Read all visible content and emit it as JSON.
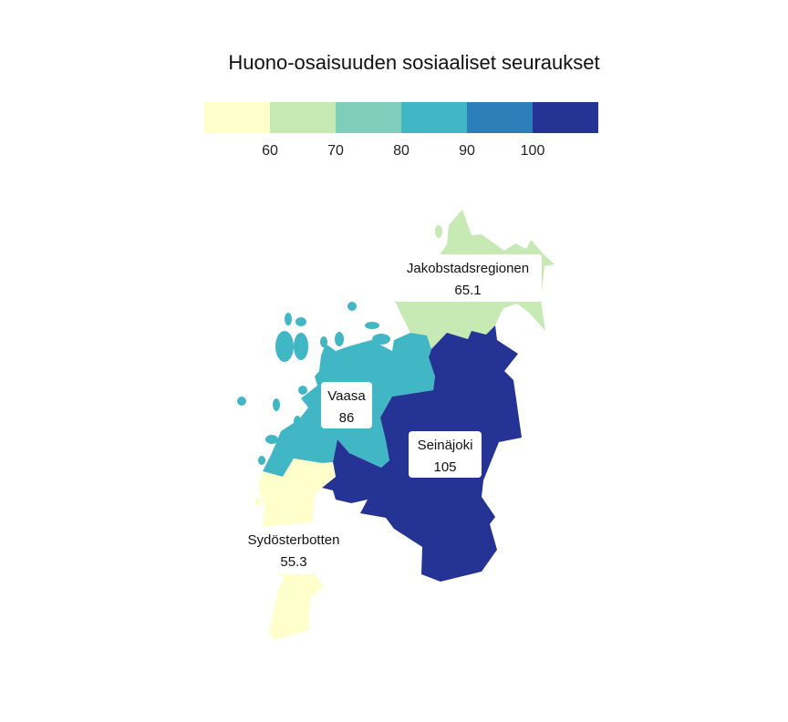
{
  "title": "Huono-osaisuuden sosiaaliset seuraukset",
  "legend": {
    "breaks": [
      "60",
      "70",
      "80",
      "90",
      "100"
    ],
    "colors": [
      "#ffffcc",
      "#c7e9b4",
      "#7fcdbb",
      "#41b6c4",
      "#2c7fb8",
      "#253494"
    ]
  },
  "regions": [
    {
      "name": "Jakobstadsregionen",
      "value": "65.1",
      "color": "#c7e9b4"
    },
    {
      "name": "Vaasa",
      "value": "86",
      "color": "#41b6c4"
    },
    {
      "name": "Seinäjoki",
      "value": "105",
      "color": "#253494"
    },
    {
      "name": "Sydösterbotten",
      "value": "55.3",
      "color": "#ffffcc"
    }
  ]
}
